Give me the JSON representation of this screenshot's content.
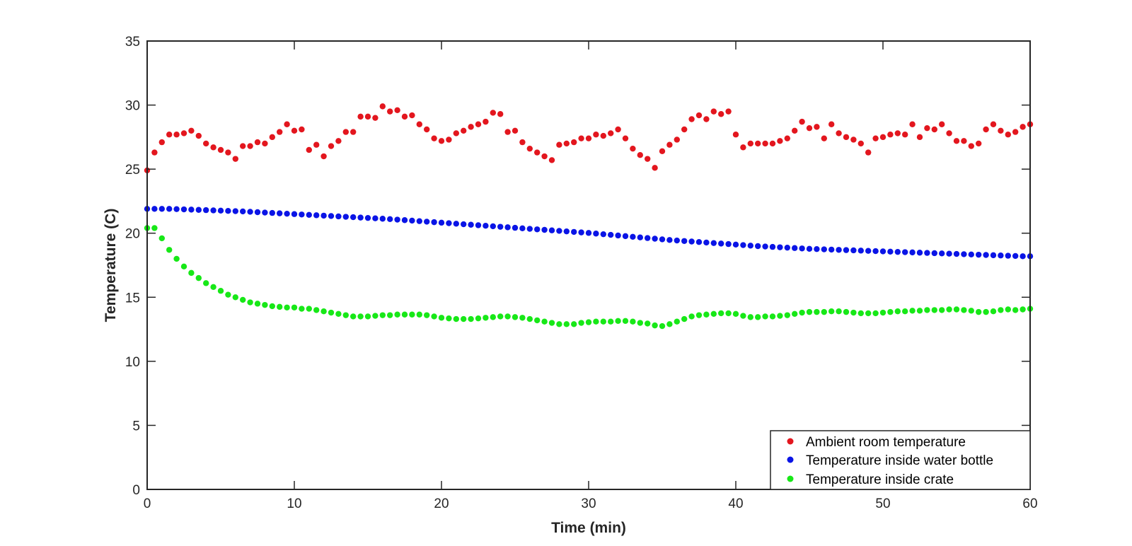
{
  "chart_data": {
    "type": "scatter",
    "title": "",
    "xlabel": "Time (min)",
    "ylabel": "Temperature (C)",
    "xlim": [
      0,
      60
    ],
    "ylim": [
      0,
      35
    ],
    "xticks": [
      "0",
      "10",
      "20",
      "30",
      "40",
      "50",
      "60"
    ],
    "yticks": [
      "0",
      "5",
      "10",
      "15",
      "20",
      "25",
      "30",
      "35"
    ],
    "grid": false,
    "legend_position": "bottom-right",
    "x": [
      0,
      0.5,
      1,
      1.5,
      2,
      2.5,
      3,
      3.5,
      4,
      4.5,
      5,
      5.5,
      6,
      6.5,
      7,
      7.5,
      8,
      8.5,
      9,
      9.5,
      10,
      10.5,
      11,
      11.5,
      12,
      12.5,
      13,
      13.5,
      14,
      14.5,
      15,
      15.5,
      16,
      16.5,
      17,
      17.5,
      18,
      18.5,
      19,
      19.5,
      20,
      20.5,
      21,
      21.5,
      22,
      22.5,
      23,
      23.5,
      24,
      24.5,
      25,
      25.5,
      26,
      26.5,
      27,
      27.5,
      28,
      28.5,
      29,
      29.5,
      30,
      30.5,
      31,
      31.5,
      32,
      32.5,
      33,
      33.5,
      34,
      34.5,
      35,
      35.5,
      36,
      36.5,
      37,
      37.5,
      38,
      38.5,
      39,
      39.5,
      40,
      40.5,
      41,
      41.5,
      42,
      42.5,
      43,
      43.5,
      44,
      44.5,
      45,
      45.5,
      46,
      46.5,
      47,
      47.5,
      48,
      48.5,
      49,
      49.5,
      50,
      50.5,
      51,
      51.5,
      52,
      52.5,
      53,
      53.5,
      54,
      54.5,
      55,
      55.5,
      56,
      56.5,
      57,
      57.5,
      58,
      58.5,
      59,
      59.5,
      60
    ],
    "series": [
      {
        "name": "Ambient room temperature",
        "color": "#e3161e",
        "values": [
          24.9,
          26.3,
          27.1,
          27.7,
          27.7,
          27.8,
          28.0,
          27.6,
          27.0,
          26.7,
          26.5,
          26.3,
          25.8,
          26.8,
          26.8,
          27.1,
          27.0,
          27.5,
          27.9,
          28.5,
          28.0,
          28.1,
          26.5,
          26.9,
          26.0,
          26.8,
          27.2,
          27.9,
          27.9,
          29.1,
          29.1,
          29.0,
          29.9,
          29.5,
          29.6,
          29.1,
          29.2,
          28.5,
          28.1,
          27.4,
          27.2,
          27.3,
          27.8,
          28.0,
          28.3,
          28.5,
          28.7,
          29.4,
          29.3,
          27.9,
          28.0,
          27.1,
          26.6,
          26.3,
          26.0,
          25.7,
          26.9,
          27.0,
          27.1,
          27.4,
          27.4,
          27.7,
          27.6,
          27.8,
          28.1,
          27.4,
          26.6,
          26.1,
          25.8,
          25.1,
          26.4,
          26.9,
          27.3,
          28.1,
          28.9,
          29.2,
          28.9,
          29.5,
          29.3,
          29.5,
          27.7,
          26.7,
          27.0,
          27.0,
          27.0,
          27.0,
          27.2,
          27.4,
          28.0,
          28.7,
          28.2,
          28.3,
          27.4,
          28.5,
          27.8,
          27.5,
          27.3,
          27.0,
          26.3,
          27.4,
          27.5,
          27.7,
          27.8,
          27.7,
          28.5,
          27.5,
          28.2,
          28.1,
          28.5,
          27.8,
          27.2,
          27.2,
          26.8,
          27.0,
          28.1,
          28.5,
          28.0,
          27.7,
          27.9,
          28.3,
          28.5
        ]
      },
      {
        "name": "Temperature inside water bottle",
        "color": "#0a14e6",
        "values": [
          21.9,
          21.9,
          21.9,
          21.9,
          21.88,
          21.86,
          21.84,
          21.82,
          21.8,
          21.78,
          21.76,
          21.74,
          21.72,
          21.7,
          21.67,
          21.64,
          21.61,
          21.58,
          21.55,
          21.52,
          21.49,
          21.46,
          21.43,
          21.4,
          21.37,
          21.34,
          21.31,
          21.28,
          21.25,
          21.22,
          21.19,
          21.16,
          21.13,
          21.1,
          21.06,
          21.02,
          20.98,
          20.94,
          20.9,
          20.86,
          20.82,
          20.78,
          20.74,
          20.7,
          20.66,
          20.62,
          20.58,
          20.54,
          20.5,
          20.46,
          20.42,
          20.38,
          20.34,
          20.3,
          20.26,
          20.22,
          20.18,
          20.14,
          20.1,
          20.06,
          20.02,
          19.97,
          19.92,
          19.87,
          19.82,
          19.77,
          19.72,
          19.67,
          19.62,
          19.57,
          19.52,
          19.47,
          19.43,
          19.39,
          19.35,
          19.31,
          19.27,
          19.23,
          19.19,
          19.15,
          19.11,
          19.07,
          19.03,
          18.99,
          18.96,
          18.93,
          18.9,
          18.87,
          18.84,
          18.81,
          18.78,
          18.76,
          18.74,
          18.72,
          18.7,
          18.68,
          18.66,
          18.64,
          18.62,
          18.6,
          18.58,
          18.56,
          18.54,
          18.52,
          18.5,
          18.48,
          18.46,
          18.44,
          18.42,
          18.4,
          18.38,
          18.36,
          18.34,
          18.32,
          18.3,
          18.28,
          18.26,
          18.24,
          18.22,
          18.2,
          18.2
        ]
      },
      {
        "name": "Temperature inside crate",
        "color": "#17e817",
        "values": [
          20.4,
          20.4,
          19.6,
          18.7,
          18.0,
          17.4,
          16.9,
          16.5,
          16.1,
          15.8,
          15.5,
          15.2,
          15.0,
          14.8,
          14.6,
          14.5,
          14.4,
          14.3,
          14.25,
          14.2,
          14.2,
          14.1,
          14.1,
          14.0,
          13.9,
          13.8,
          13.7,
          13.6,
          13.5,
          13.5,
          13.5,
          13.55,
          13.6,
          13.6,
          13.65,
          13.65,
          13.65,
          13.65,
          13.6,
          13.5,
          13.4,
          13.35,
          13.3,
          13.3,
          13.3,
          13.35,
          13.4,
          13.45,
          13.5,
          13.5,
          13.45,
          13.4,
          13.3,
          13.2,
          13.1,
          13.0,
          12.9,
          12.9,
          12.9,
          13.0,
          13.05,
          13.1,
          13.1,
          13.1,
          13.15,
          13.15,
          13.1,
          13.0,
          12.95,
          12.8,
          12.75,
          12.9,
          13.1,
          13.3,
          13.5,
          13.6,
          13.65,
          13.7,
          13.75,
          13.75,
          13.7,
          13.55,
          13.45,
          13.45,
          13.5,
          13.5,
          13.55,
          13.6,
          13.7,
          13.8,
          13.85,
          13.85,
          13.85,
          13.9,
          13.9,
          13.85,
          13.8,
          13.75,
          13.75,
          13.75,
          13.8,
          13.85,
          13.9,
          13.9,
          13.95,
          13.95,
          14.0,
          14.0,
          14.0,
          14.05,
          14.05,
          14.0,
          13.95,
          13.85,
          13.85,
          13.9,
          14.0,
          14.05,
          14.0,
          14.05,
          14.1
        ]
      }
    ]
  }
}
